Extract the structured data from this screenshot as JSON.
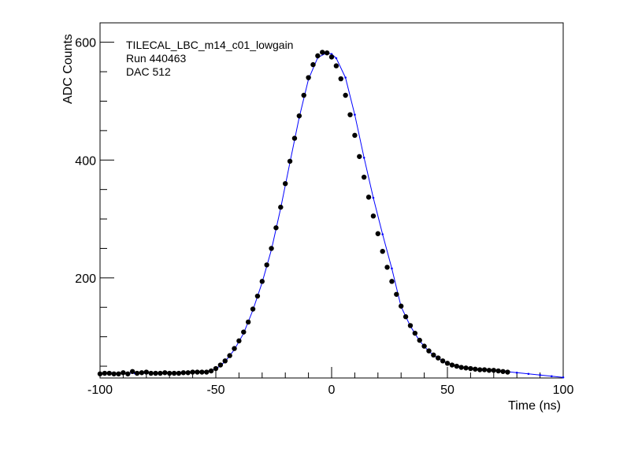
{
  "chart_data": {
    "type": "scatter",
    "xlabel": "Time (ns)",
    "ylabel": "ADC Counts",
    "xlim": [
      -100,
      100
    ],
    "ylim": [
      30,
      633
    ],
    "x_ticks": [
      -100,
      -50,
      0,
      50,
      100
    ],
    "y_ticks": [
      200,
      400,
      600
    ],
    "annotations": [
      "TILECAL_LBC_m14_c01_lowgain",
      "Run 440463",
      "DAC 512"
    ],
    "series": [
      {
        "kind": "points",
        "color": "#000000",
        "x": [
          -100,
          -98,
          -96,
          -94,
          -92,
          -90,
          -88,
          -86,
          -84,
          -82,
          -80,
          -78,
          -76,
          -74,
          -72,
          -70,
          -68,
          -66,
          -64,
          -62,
          -60,
          -58,
          -56,
          -54,
          -52,
          -50,
          -48,
          -46,
          -44,
          -42,
          -40,
          -38,
          -36,
          -34,
          -32,
          -30,
          -28,
          -26,
          -24,
          -22,
          -20,
          -18,
          -16,
          -14,
          -12,
          -10,
          -8,
          -6,
          -4,
          -2,
          0,
          2,
          4,
          6,
          8,
          10,
          12,
          14,
          16,
          18,
          20,
          22,
          24,
          26,
          28,
          30,
          32,
          34,
          36,
          38,
          40,
          42,
          44,
          46,
          48,
          50,
          52,
          54,
          56,
          58,
          60,
          62,
          64,
          66,
          68,
          70,
          72,
          74,
          76
        ],
        "y": [
          37,
          38,
          38,
          37,
          37,
          39,
          37,
          41,
          38,
          39,
          40,
          38,
          38,
          38,
          39,
          38,
          38,
          38,
          39,
          39,
          40,
          40,
          40,
          40,
          42,
          46,
          52,
          59,
          68,
          80,
          93,
          108,
          125,
          147,
          169,
          194,
          222,
          250,
          285,
          320,
          360,
          398,
          437,
          475,
          510,
          540,
          562,
          577,
          583,
          582,
          575,
          560,
          538,
          510,
          477,
          442,
          406,
          371,
          337,
          305,
          275,
          245,
          218,
          194,
          172,
          152,
          134,
          119,
          106,
          94,
          84,
          76,
          69,
          64,
          59,
          55,
          52,
          50,
          48,
          47,
          46,
          45,
          44,
          44,
          43,
          43,
          42,
          41,
          40
        ]
      },
      {
        "kind": "fit-line",
        "color": "#0000ff",
        "x": [
          -100,
          -95,
          -90,
          -85,
          -80,
          -75,
          -70,
          -65,
          -60,
          -55,
          -50,
          -46,
          -42,
          -38,
          -34,
          -30,
          -26,
          -22,
          -18,
          -14,
          -10,
          -6,
          -2,
          0,
          2,
          6,
          10,
          14,
          18,
          22,
          26,
          30,
          34,
          38,
          42,
          46,
          50,
          55,
          60,
          65,
          70,
          75,
          80,
          85,
          90,
          95,
          100
        ],
        "y": [
          37,
          38,
          38,
          38,
          38,
          38,
          38,
          39,
          39,
          40,
          45,
          58,
          78,
          106,
          145,
          192,
          248,
          318,
          396,
          472,
          537,
          574,
          582,
          580,
          573,
          540,
          477,
          404,
          336,
          274,
          216,
          151,
          118,
          93,
          75,
          63,
          55,
          49,
          46,
          44,
          43,
          41,
          39,
          37,
          35,
          33,
          31
        ]
      }
    ]
  }
}
